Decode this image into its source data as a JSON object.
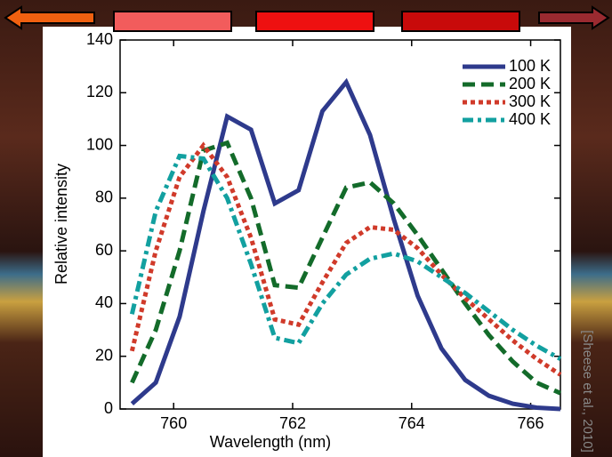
{
  "chart_data": {
    "type": "line",
    "xlabel": "Wavelength (nm)",
    "ylabel": "Relative intensity",
    "x": [
      759.3,
      759.7,
      760.1,
      760.5,
      760.9,
      761.3,
      761.7,
      762.1,
      762.5,
      762.9,
      763.3,
      763.7,
      764.1,
      764.5,
      764.9,
      765.3,
      765.7,
      766.1,
      766.5
    ],
    "series": [
      {
        "name": "100 K",
        "color": "#2e3a8c",
        "style": "solid",
        "values": [
          2,
          10,
          35,
          75,
          111,
          106,
          78,
          83,
          113,
          124,
          104,
          72,
          43,
          23,
          11,
          5,
          2,
          0.5,
          0
        ]
      },
      {
        "name": "200 K",
        "color": "#136b2a",
        "style": "dashed",
        "values": [
          10,
          30,
          60,
          98,
          101,
          80,
          47,
          46,
          65,
          84,
          86,
          78,
          66,
          53,
          40,
          28,
          18,
          10,
          6
        ]
      },
      {
        "name": "300 K",
        "color": "#d03a2a",
        "style": "dotted",
        "values": [
          22,
          60,
          88,
          100,
          88,
          65,
          34,
          32,
          48,
          63,
          69,
          68,
          61,
          51,
          42,
          34,
          26,
          19,
          13
        ]
      },
      {
        "name": "400 K",
        "color": "#12a0a0",
        "style": "dashdot",
        "values": [
          36,
          75,
          96,
          95,
          80,
          55,
          27,
          25,
          40,
          51,
          57,
          59,
          56,
          50,
          44,
          37,
          30,
          24,
          19
        ]
      }
    ],
    "xlim": [
      759.1,
      766.5
    ],
    "ylim": [
      0,
      140
    ],
    "xticks": [
      760,
      762,
      764,
      766
    ],
    "yticks": [
      0,
      20,
      40,
      60,
      80,
      100,
      120,
      140
    ],
    "grid": false,
    "legend": "upper right"
  },
  "citation": "[Sheese et al., 2010]"
}
